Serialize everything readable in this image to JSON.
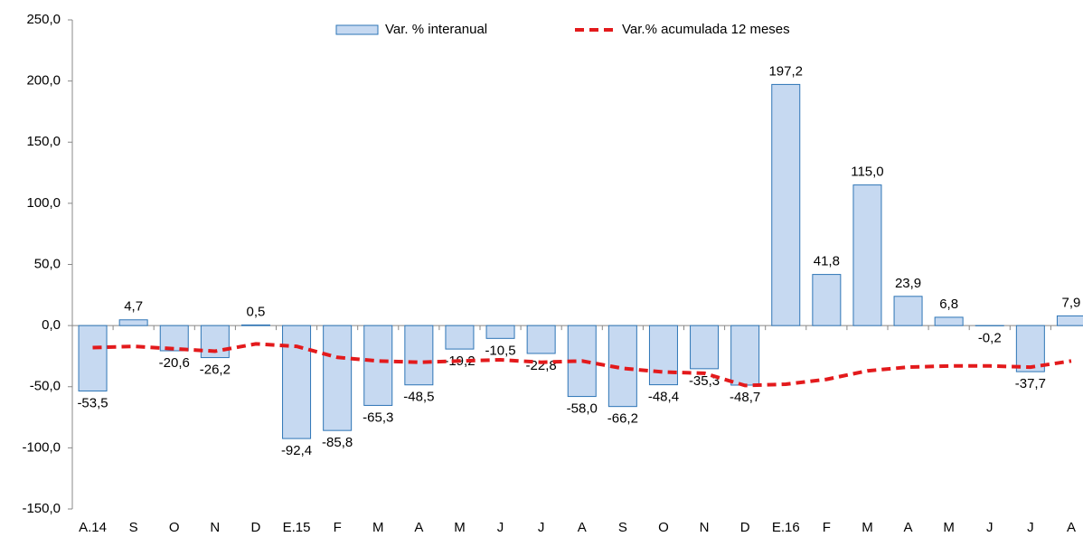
{
  "chart_data": {
    "type": "bar",
    "categories": [
      "A.14",
      "S",
      "O",
      "N",
      "D",
      "E.15",
      "F",
      "M",
      "A",
      "M",
      "J",
      "J",
      "A",
      "S",
      "O",
      "N",
      "D",
      "E.16",
      "F",
      "M",
      "A",
      "M",
      "J",
      "J",
      "A"
    ],
    "series": [
      {
        "name": "Var. % interanual",
        "type": "bar",
        "color": "#c6d9f1",
        "edge_color": "#2e75b6",
        "values": [
          -53.5,
          4.7,
          -20.6,
          -26.2,
          0.5,
          -92.4,
          -85.8,
          -65.3,
          -48.5,
          -19.2,
          -10.5,
          -22.8,
          -58.0,
          -66.2,
          -48.4,
          -35.3,
          -48.7,
          197.2,
          41.8,
          115.0,
          23.9,
          6.8,
          -0.2,
          -37.7,
          7.9
        ],
        "value_labels": [
          "-53,5",
          "4,7",
          "-20,6",
          "-26,2",
          "0,5",
          "-92,4",
          "-85,8",
          "-65,3",
          "-48,5",
          "-19,2",
          "-10,5",
          "-22,8",
          "-58,0",
          "-66,2",
          "-48,4",
          "-35,3",
          "-48,7",
          "197,2",
          "41,8",
          "115,0",
          "23,9",
          "6,8",
          "-0,2",
          "-37,7",
          "7,9"
        ]
      },
      {
        "name": "Var.% acumulada 12 meses",
        "type": "line",
        "color": "#e31a1c",
        "dashed": true,
        "values": [
          -18,
          -17,
          -19,
          -21,
          -15,
          -17,
          -26,
          -29,
          -30,
          -29,
          -28,
          -30,
          -29,
          -35,
          -38,
          -39,
          -49,
          -48,
          -44,
          -37,
          -34,
          -33,
          -33,
          -34,
          -29
        ]
      }
    ],
    "ylim": [
      -150,
      250
    ],
    "yticks": [
      {
        "value": -150,
        "label": "-150,0"
      },
      {
        "value": -100,
        "label": "-100,0"
      },
      {
        "value": -50,
        "label": "-50,0"
      },
      {
        "value": 0,
        "label": "0,0"
      },
      {
        "value": 50,
        "label": "50,0"
      },
      {
        "value": 100,
        "label": "100,0"
      },
      {
        "value": 150,
        "label": "150,0"
      },
      {
        "value": 200,
        "label": "200,0"
      },
      {
        "value": 250,
        "label": "250,0"
      }
    ],
    "legend": "top"
  }
}
